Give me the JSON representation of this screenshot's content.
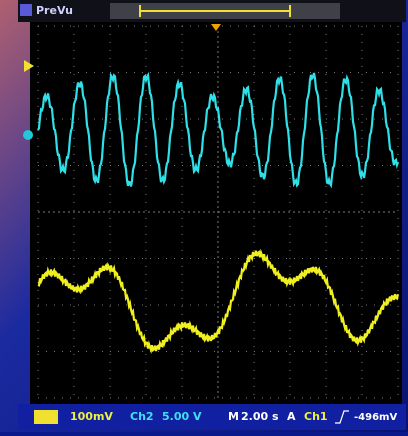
{
  "header": {
    "mode": "PreVu"
  },
  "status_bar": {
    "ch1_scale": "100mV",
    "ch2_label": "Ch2",
    "ch2_scale": "5.00 V",
    "timebase_label": "M",
    "timebase": "2.00 s",
    "trigger_label": "A",
    "trigger_source": "Ch1",
    "trigger_level": "-496mV"
  }
}
